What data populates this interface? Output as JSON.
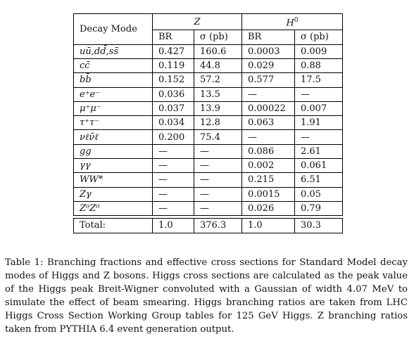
{
  "table": {
    "header": {
      "mode_label": "Decay Mode",
      "z_label": "Z",
      "h_label": "H",
      "h_sup": "0",
      "br_label": "BR",
      "sigma_label": "σ (pb)"
    },
    "rows": [
      {
        "mode": "uū,dd̄,ss̄",
        "z_br": "0.427",
        "z_sigma": "160.6",
        "h_br": "0.0003",
        "h_sigma": "0.009"
      },
      {
        "mode": "cc̄",
        "z_br": "0.119",
        "z_sigma": "44.8",
        "h_br": "0.029",
        "h_sigma": "0.88"
      },
      {
        "mode": "bb̄",
        "z_br": "0.152",
        "z_sigma": "57.2",
        "h_br": "0.577",
        "h_sigma": "17.5"
      },
      {
        "mode": "e⁺e⁻",
        "z_br": "0.036",
        "z_sigma": "13.5",
        "h_br": "—",
        "h_sigma": "—"
      },
      {
        "mode": "μ⁺μ⁻",
        "z_br": "0.037",
        "z_sigma": "13.9",
        "h_br": "0.00022",
        "h_sigma": "0.007"
      },
      {
        "mode": "τ⁺τ⁻",
        "z_br": "0.034",
        "z_sigma": "12.8",
        "h_br": "0.063",
        "h_sigma": "1.91"
      },
      {
        "mode": "νℓν̄ℓ",
        "z_br": "0.200",
        "z_sigma": "75.4",
        "h_br": "—",
        "h_sigma": "—"
      },
      {
        "mode": "gg",
        "z_br": "—",
        "z_sigma": "—",
        "h_br": "0.086",
        "h_sigma": "2.61"
      },
      {
        "mode": "γγ",
        "z_br": "—",
        "z_sigma": "—",
        "h_br": "0.002",
        "h_sigma": "0.061"
      },
      {
        "mode": "WW*",
        "z_br": "—",
        "z_sigma": "—",
        "h_br": "0.215",
        "h_sigma": "6.51"
      },
      {
        "mode": "Zγ",
        "z_br": "—",
        "z_sigma": "—",
        "h_br": "0.0015",
        "h_sigma": "0.05"
      },
      {
        "mode": "Z⁰Z⁰",
        "z_br": "—",
        "z_sigma": "—",
        "h_br": "0.026",
        "h_sigma": "0.79"
      }
    ],
    "total": {
      "label": "Total:",
      "z_br": "1.0",
      "z_sigma": "376.3",
      "h_br": "1.0",
      "h_sigma": "30.3"
    }
  },
  "caption": "Table 1: Branching fractions and effective cross sections for Standard Model decay modes of Higgs and Z bosons. Higgs cross sections are calculated as the peak value of the Higgs peak Breit-Wigner convoluted with a Gaussian of width 4.07 MeV to simulate the effect of beam smearing. Higgs branching ratios are taken from LHC Higgs Cross Section Working Group tables for 125 GeV Higgs. Z branching ratios taken from PYTHIA 6.4 event generation output."
}
